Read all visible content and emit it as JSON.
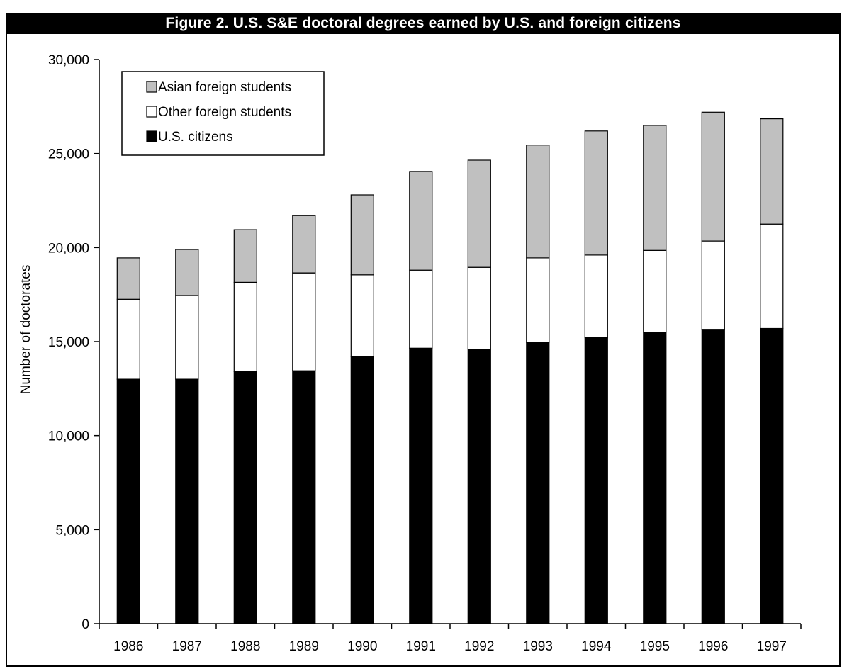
{
  "chart_data": {
    "type": "bar",
    "stacked": true,
    "title": "Figure 2. U.S. S&E doctoral degrees earned by U.S. and foreign citizens",
    "xlabel": "",
    "ylabel": "Number of doctorates",
    "ylim": [
      0,
      30000
    ],
    "yticks": [
      0,
      5000,
      10000,
      15000,
      20000,
      25000,
      30000
    ],
    "ytick_labels": [
      "0",
      "5,000",
      "10,000",
      "15,000",
      "20,000",
      "25,000",
      "30,000"
    ],
    "categories": [
      "1986",
      "1987",
      "1988",
      "1989",
      "1990",
      "1991",
      "1992",
      "1993",
      "1994",
      "1995",
      "1996",
      "1997"
    ],
    "series": [
      {
        "name": "U.S. citizens",
        "color": "#000000",
        "values": [
          13000,
          13000,
          13400,
          13450,
          14200,
          14650,
          14600,
          14950,
          15200,
          15500,
          15650,
          15700
        ]
      },
      {
        "name": "Other foreign students",
        "color": "#ffffff",
        "values": [
          4250,
          4450,
          4750,
          5200,
          4350,
          4150,
          4350,
          4500,
          4400,
          4350,
          4700,
          5550
        ]
      },
      {
        "name": "Asian foreign students",
        "color": "#c0c0c0",
        "values": [
          2200,
          2450,
          2800,
          3050,
          4250,
          5250,
          5700,
          6000,
          6600,
          6650,
          6850,
          5600
        ]
      }
    ],
    "legend": {
      "placement": "top-left",
      "order": [
        "Asian foreign students",
        "Other foreign students",
        "U.S. citizens"
      ]
    },
    "grid": false
  }
}
